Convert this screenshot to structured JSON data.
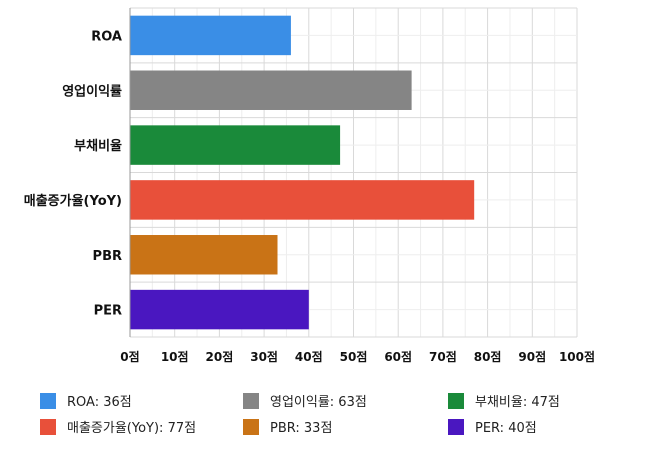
{
  "chart_data": {
    "type": "bar",
    "orientation": "horizontal",
    "categories": [
      "ROA",
      "영업이익률",
      "부채비율",
      "매출증가율(YoY)",
      "PBR",
      "PER"
    ],
    "values": [
      36,
      63,
      47,
      77,
      33,
      40
    ],
    "colors": [
      "#3a8ee6",
      "#858585",
      "#1a8a3a",
      "#e8503a",
      "#c97316",
      "#4a17c0"
    ],
    "xlim": [
      0,
      100
    ],
    "x_ticks": [
      0,
      10,
      20,
      30,
      40,
      50,
      60,
      70,
      80,
      90,
      100
    ],
    "x_tick_suffix": "점",
    "grid": true,
    "legend_position": "bottom",
    "legend": [
      {
        "label": "ROA: 36점",
        "color": "#3a8ee6"
      },
      {
        "label": "영업이익률: 63점",
        "color": "#858585"
      },
      {
        "label": "부채비율: 47점",
        "color": "#1a8a3a"
      },
      {
        "label": "매출증가율(YoY): 77점",
        "color": "#e8503a"
      },
      {
        "label": "PBR: 33점",
        "color": "#c97316"
      },
      {
        "label": "PER: 40점",
        "color": "#4a17c0"
      }
    ]
  }
}
